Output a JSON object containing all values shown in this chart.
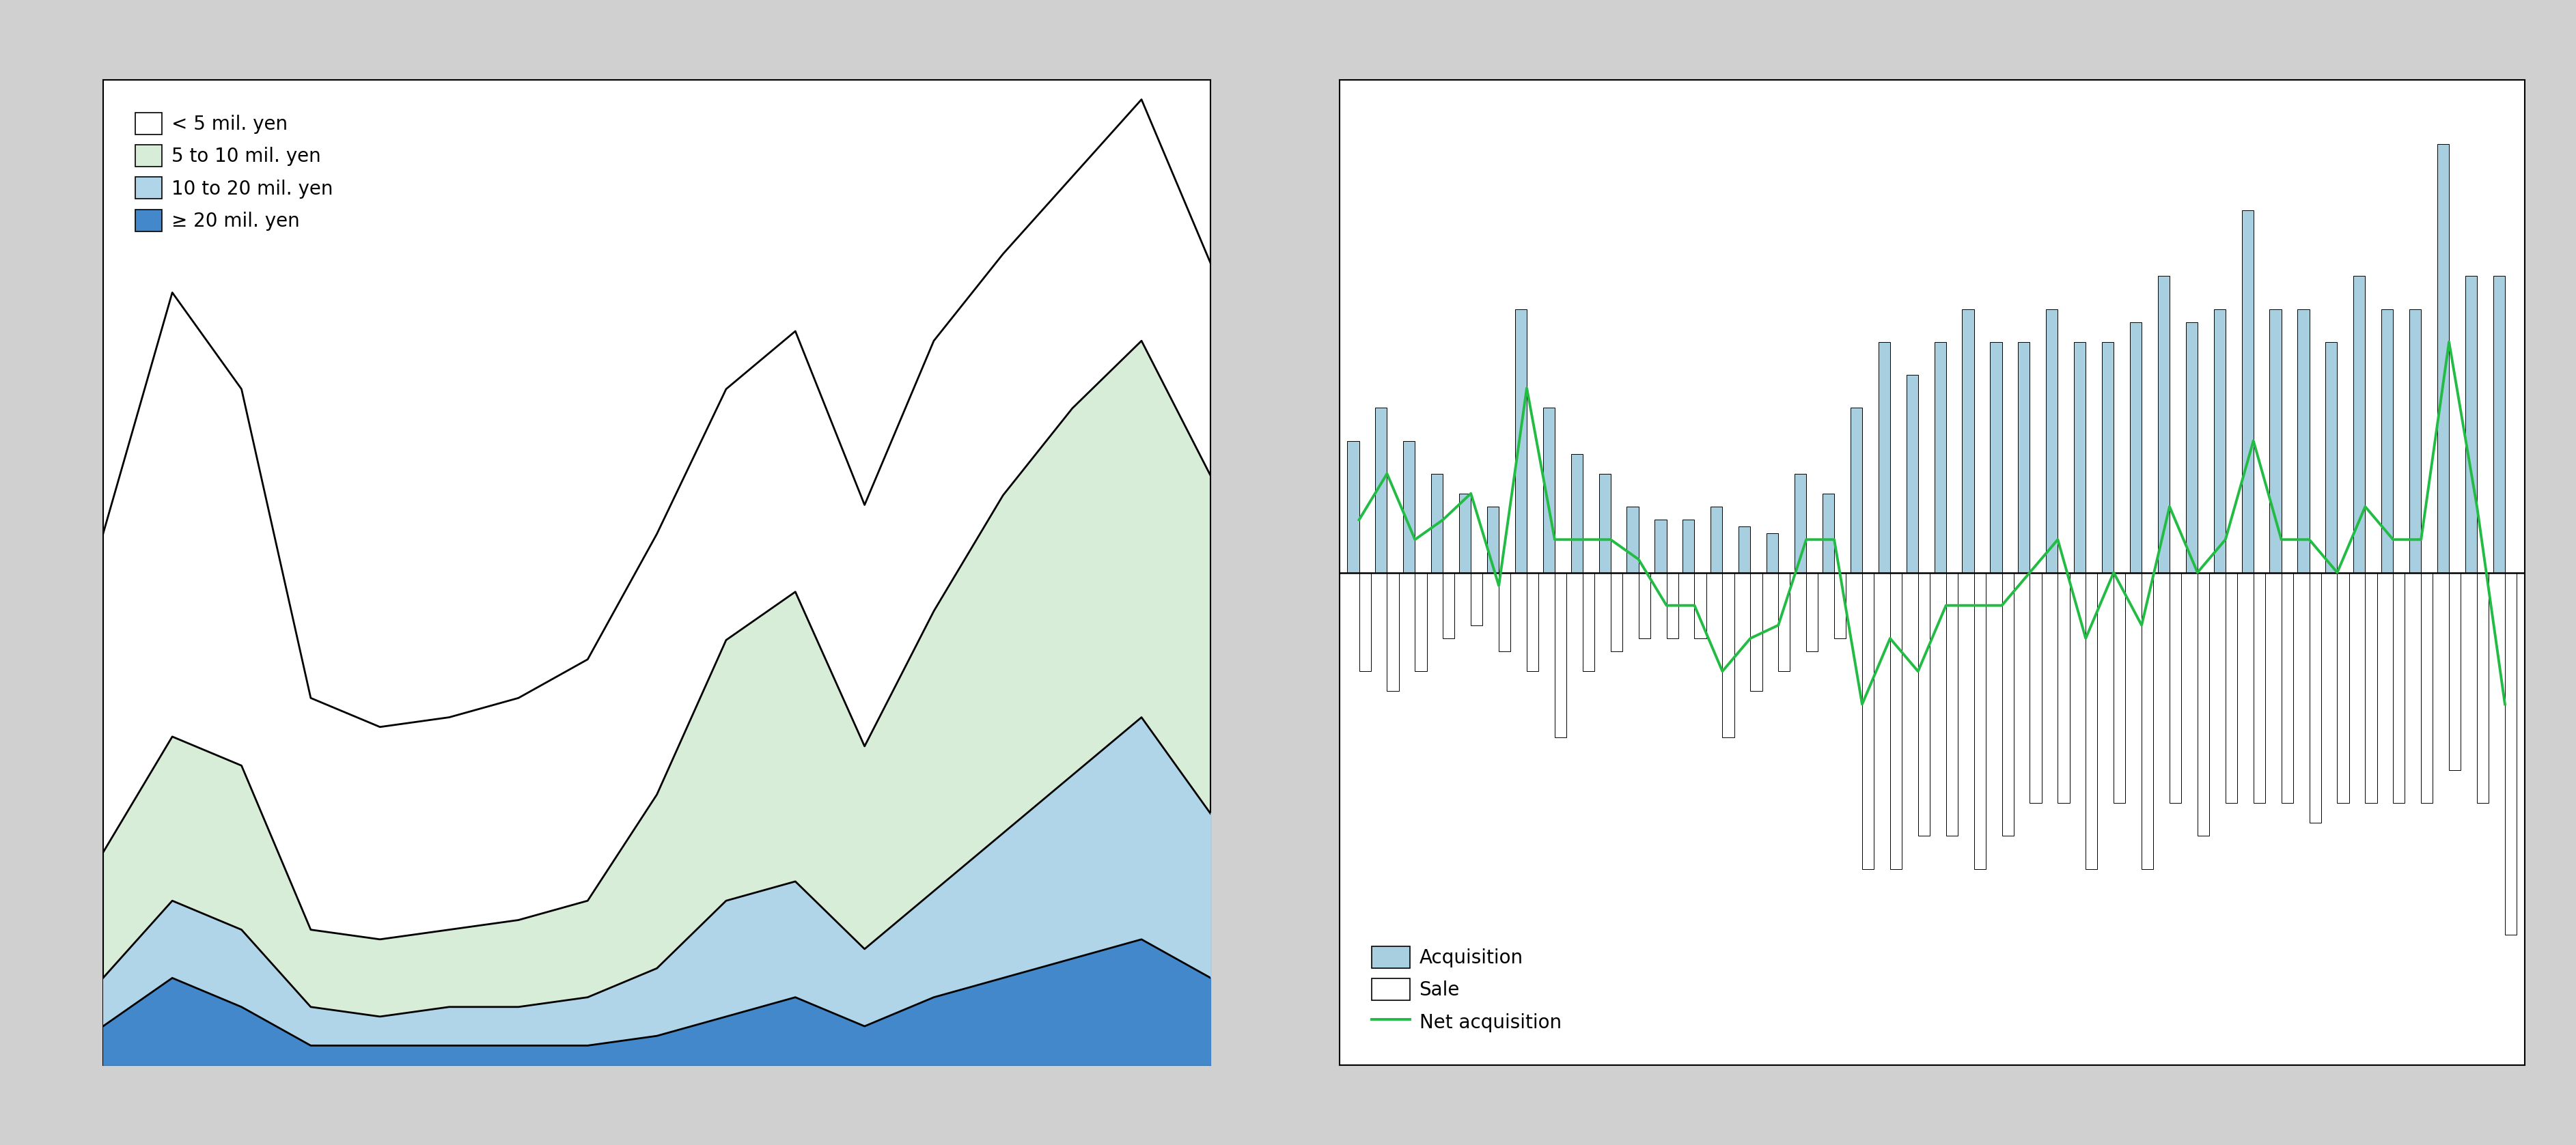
{
  "bg_color": "#d0d0d0",
  "chart1": {
    "legend_labels": [
      "< 5 mil. yen",
      "5 to 10 mil. yen",
      "10 to 20 mil. yen",
      "≥ 20 mil. yen"
    ],
    "color_white": "#ffffff",
    "color_green": "#d8edd8",
    "color_lightblue": "#b0d4e8",
    "color_darkblue": "#4488cc",
    "x": [
      0,
      1,
      2,
      3,
      4,
      5,
      6,
      7,
      8,
      9,
      10,
      11,
      12,
      13,
      14,
      15,
      16
    ],
    "d20_plus": [
      4,
      9,
      6,
      2,
      2,
      2,
      2,
      2,
      3,
      5,
      7,
      4,
      7,
      9,
      11,
      13,
      9
    ],
    "d10_20": [
      9,
      17,
      14,
      6,
      5,
      6,
      6,
      7,
      10,
      17,
      19,
      12,
      18,
      24,
      30,
      36,
      26
    ],
    "d5_10": [
      22,
      34,
      31,
      14,
      13,
      14,
      15,
      17,
      28,
      44,
      49,
      33,
      47,
      59,
      68,
      75,
      61
    ],
    "total": [
      55,
      80,
      70,
      38,
      35,
      36,
      38,
      42,
      55,
      70,
      76,
      58,
      75,
      84,
      92,
      100,
      83
    ]
  },
  "chart2": {
    "legend_labels": [
      "Acquisition",
      "Sale",
      "Net acquisition"
    ],
    "acquisition_color": "#a8cfe0",
    "sale_color": "#ffffff",
    "net_color": "#22bb44",
    "acquisition": [
      2.0,
      2.5,
      2.0,
      1.5,
      1.2,
      1.0,
      4.0,
      2.5,
      1.8,
      1.5,
      1.0,
      0.8,
      0.8,
      1.0,
      0.7,
      0.6,
      1.5,
      1.2,
      2.5,
      3.5,
      3.0,
      3.5,
      4.0,
      3.5,
      3.5,
      4.0,
      3.5,
      3.5,
      3.8,
      4.5,
      3.8,
      4.0,
      5.5,
      4.0,
      4.0,
      3.5,
      4.5,
      4.0,
      4.0,
      6.5,
      4.5,
      4.5
    ],
    "sale": [
      1.5,
      1.8,
      1.5,
      1.0,
      0.8,
      1.2,
      1.5,
      2.5,
      1.5,
      1.2,
      1.0,
      1.0,
      1.0,
      2.5,
      1.8,
      1.5,
      1.2,
      1.0,
      4.5,
      4.5,
      4.0,
      4.0,
      4.5,
      4.0,
      3.5,
      3.5,
      4.5,
      3.5,
      4.5,
      3.5,
      4.0,
      3.5,
      3.5,
      3.5,
      3.8,
      3.5,
      3.5,
      3.5,
      3.5,
      3.0,
      3.5,
      5.5
    ],
    "net": [
      0.8,
      1.5,
      0.5,
      0.8,
      1.2,
      -0.2,
      2.8,
      0.5,
      0.5,
      0.5,
      0.2,
      -0.5,
      -0.5,
      -1.5,
      -1.0,
      -0.8,
      0.5,
      0.5,
      -2.0,
      -1.0,
      -1.5,
      -0.5,
      -0.5,
      -0.5,
      0.0,
      0.5,
      -1.0,
      0.0,
      -0.8,
      1.0,
      0.0,
      0.5,
      2.0,
      0.5,
      0.5,
      0.0,
      1.0,
      0.5,
      0.5,
      3.5,
      1.0,
      -2.0
    ]
  }
}
